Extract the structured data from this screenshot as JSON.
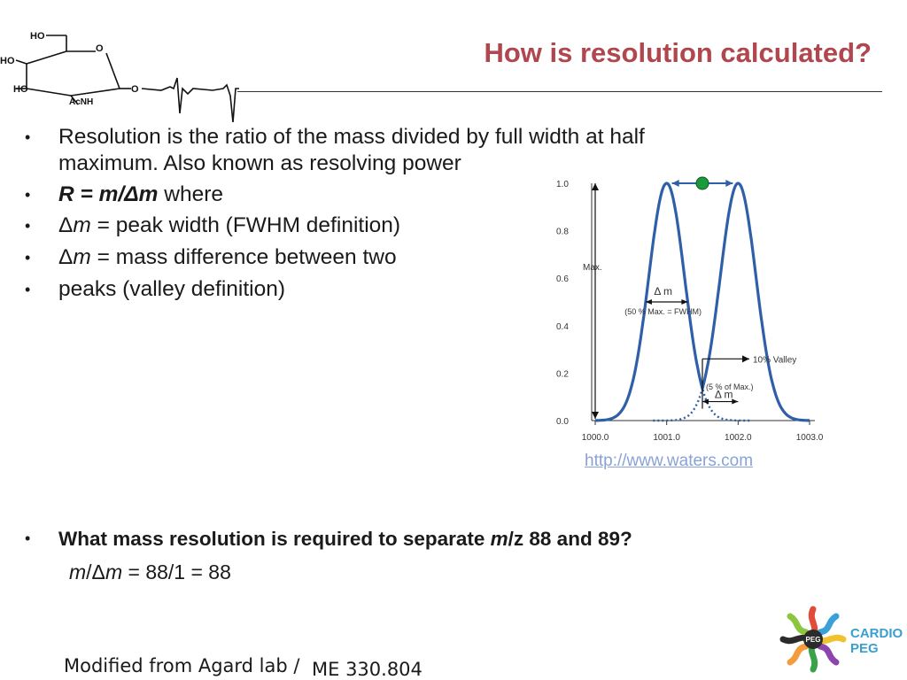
{
  "slide": {
    "title": "How is resolution calculated?",
    "molecule": {
      "labels": [
        "HO",
        "HO",
        "HO",
        "O",
        "O",
        "AcNH"
      ]
    },
    "bullets": [
      {
        "marker": "•",
        "text": "Resolution is the ratio of the mass divided by full width at half"
      },
      {
        "marker": "",
        "text": "maximum. Also known as resolving power"
      },
      {
        "marker": "•",
        "text_parts": [
          "R = m/Δm",
          " where"
        ]
      },
      {
        "marker": "•",
        "text_parts": [
          "Δ",
          "m",
          " = peak width (FWHM definition)"
        ]
      },
      {
        "marker": "•",
        "text_parts": [
          "Δ",
          "m",
          " = mass difference between two"
        ]
      },
      {
        "marker": "•",
        "text": "peaks (valley definition)"
      }
    ],
    "question": {
      "marker": "•",
      "parts": [
        "What mass resolution is required to separate ",
        "m",
        "/z 88 and 89?"
      ]
    },
    "answer": {
      "parts": [
        "m",
        "/Δ",
        "m",
        " = 88/1 = 88"
      ]
    },
    "footer": {
      "left": "Modified from Agard lab /",
      "right": "ME 330.804"
    },
    "logo": {
      "badge": "PEG",
      "line1": "CARDIO",
      "line2": "PEG"
    },
    "source_url": "http://www.waters.com"
  },
  "chart_data": {
    "type": "line",
    "x_ticks": [
      "1000.0",
      "1001.0",
      "1002.0",
      "1003.0"
    ],
    "y_ticks": [
      "0.0",
      "0.2",
      "0.4",
      "0.6",
      "0.8",
      "1.0"
    ],
    "xlim": [
      1000.0,
      1003.0
    ],
    "ylim": [
      0.0,
      1.0
    ],
    "peaks": [
      {
        "center": 1001.0,
        "height": 1.0
      },
      {
        "center": 1002.0,
        "height": 1.0
      }
    ],
    "annotations": {
      "max": "Max.",
      "fwhm_delta": "Δ m",
      "fwhm_note": "(50 % Max. = FWHM)",
      "valley": "10% Valley",
      "valley_note": "(5 % of Max.)",
      "valley_delta": "Δ m"
    },
    "colors": {
      "curve": "#2e5fa8",
      "marker": "#1a9a3a",
      "text": "#333333"
    }
  }
}
